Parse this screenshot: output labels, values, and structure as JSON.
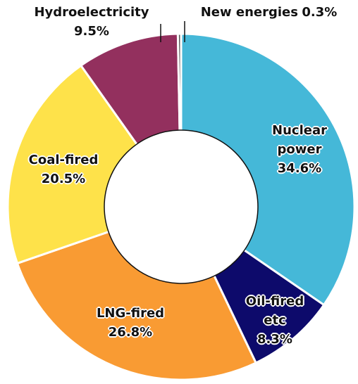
{
  "chart_data": {
    "type": "donut",
    "categories": [
      "Nuclear power",
      "Oil-fired etc",
      "LNG-fired",
      "Coal-fired",
      "Hydroelectricity",
      "New energies"
    ],
    "values": [
      34.6,
      8.3,
      26.8,
      20.5,
      9.5,
      0.3
    ],
    "value_labels": [
      "34.6%",
      "8.3%",
      "26.8%",
      "20.5%",
      "9.5%",
      "0.3%"
    ],
    "colors": [
      "#45b8d8",
      "#0d0a6b",
      "#f99b33",
      "#fee24a",
      "#93305e",
      "#555555"
    ]
  }
}
